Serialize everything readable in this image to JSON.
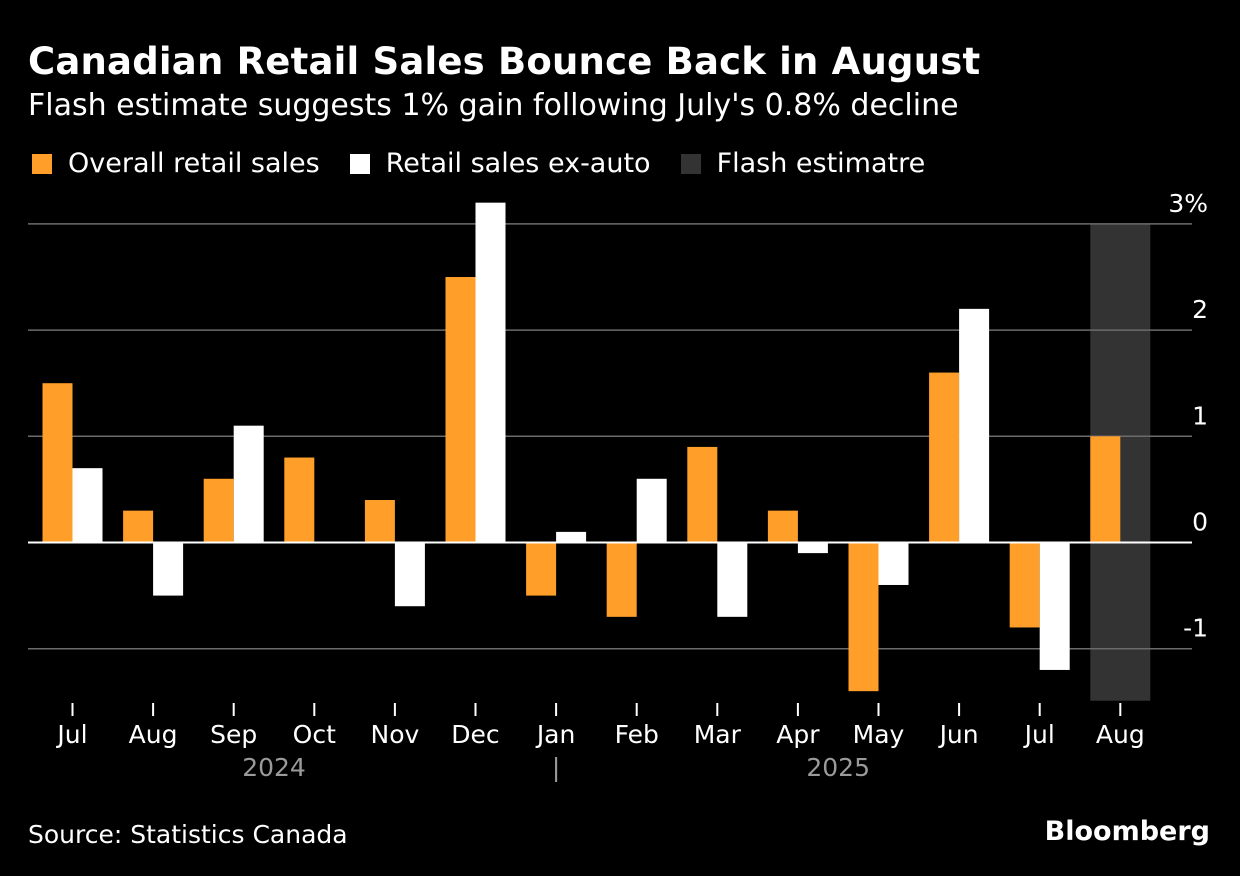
{
  "header": {
    "title": "Canadian Retail Sales Bounce Back in August",
    "subtitle": "Flash estimate suggests 1% gain following July's 0.8% decline"
  },
  "legend": [
    {
      "label": "Overall retail sales",
      "color": "#ff9f2a"
    },
    {
      "label": "Retail sales ex-auto",
      "color": "#ffffff"
    },
    {
      "label": "Flash estimatre",
      "color": "#333333"
    }
  ],
  "footer": {
    "source": "Source: Statistics Canada",
    "brand": "Bloomberg"
  },
  "chart_data": {
    "type": "bar",
    "categories": [
      "Jul",
      "Aug",
      "Sep",
      "Oct",
      "Nov",
      "Dec",
      "Jan",
      "Feb",
      "Mar",
      "Apr",
      "May",
      "Jun",
      "Jul",
      "Aug"
    ],
    "year_labels": [
      {
        "label": "2024",
        "start_index": 0,
        "end_index": 5
      },
      {
        "label": "2025",
        "start_index": 6,
        "end_index": 13
      }
    ],
    "year_separator": "|",
    "series": [
      {
        "name": "Overall retail sales",
        "color": "#ff9f2a",
        "values": [
          1.5,
          0.3,
          0.6,
          0.8,
          0.4,
          2.5,
          -0.5,
          -0.7,
          0.9,
          0.3,
          -1.4,
          1.6,
          -0.8,
          1.0
        ]
      },
      {
        "name": "Retail sales ex-auto",
        "color": "#ffffff",
        "values": [
          0.7,
          -0.5,
          1.1,
          null,
          -0.6,
          3.2,
          0.1,
          0.6,
          -0.7,
          -0.1,
          -0.4,
          2.2,
          -1.2,
          null
        ]
      }
    ],
    "highlight": {
      "name": "Flash estimatre",
      "category_index": 13,
      "color": "#333333"
    },
    "yticks": [
      {
        "value": 3,
        "label": "3%"
      },
      {
        "value": 2,
        "label": "2"
      },
      {
        "value": 1,
        "label": "1"
      },
      {
        "value": 0,
        "label": "0"
      },
      {
        "value": -1,
        "label": "-1"
      }
    ],
    "ylim": [
      -1.5,
      3.2
    ],
    "grid": true,
    "legend_position": "top-left",
    "axis_position": "right"
  }
}
